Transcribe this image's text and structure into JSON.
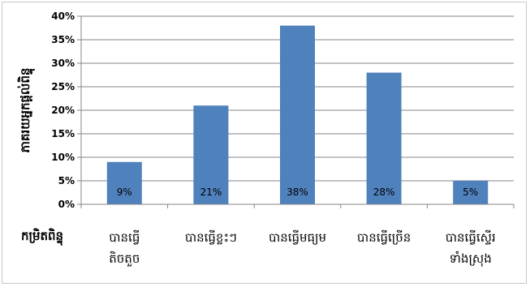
{
  "chart_data": {
    "type": "bar",
    "xlabel": "កម្រិតពិន្ទុ",
    "ylabel": "ភាគរយអ្នកផ្តល់ពិន្ទុ",
    "ylim": [
      0,
      40
    ],
    "yticks": [
      "0%",
      "5%",
      "10%",
      "15%",
      "20%",
      "25%",
      "30%",
      "35%",
      "40%"
    ],
    "grid": true,
    "legend": "none",
    "bar_color": "#4f81bd",
    "categories": [
      [
        "បានធ្វើ",
        "តិចតួច"
      ],
      [
        "បានធ្វើខ្លះៗ"
      ],
      [
        "បានធ្វើមធ្យម"
      ],
      [
        "បានធ្វើច្រើន"
      ],
      [
        "បានធ្វើស្ទើរ",
        "ទាំងស្រុង"
      ]
    ],
    "values": [
      9,
      21,
      38,
      28,
      5
    ],
    "data_labels": [
      "9%",
      "21%",
      "38%",
      "28%",
      "5%"
    ]
  }
}
